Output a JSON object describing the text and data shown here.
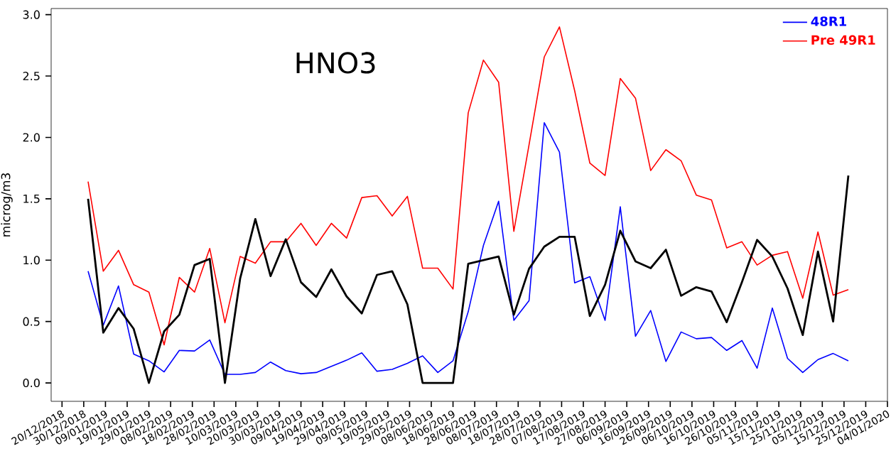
{
  "chart_data": {
    "type": "line",
    "title": "HNO3",
    "ylabel": "microg/m3",
    "x": [
      "2019-01-01",
      "2019-01-08",
      "2019-01-15",
      "2019-01-22",
      "2019-01-29",
      "2019-02-05",
      "2019-02-12",
      "2019-02-19",
      "2019-02-26",
      "2019-03-05",
      "2019-03-12",
      "2019-03-19",
      "2019-03-26",
      "2019-04-02",
      "2019-04-09",
      "2019-04-16",
      "2019-04-23",
      "2019-04-30",
      "2019-05-07",
      "2019-05-14",
      "2019-05-21",
      "2019-05-28",
      "2019-06-04",
      "2019-06-11",
      "2019-06-18",
      "2019-06-25",
      "2019-07-02",
      "2019-07-09",
      "2019-07-16",
      "2019-07-23",
      "2019-07-30",
      "2019-08-06",
      "2019-08-13",
      "2019-08-20",
      "2019-08-27",
      "2019-09-03",
      "2019-09-10",
      "2019-09-17",
      "2019-09-24",
      "2019-10-01",
      "2019-10-08",
      "2019-10-15",
      "2019-10-22",
      "2019-10-29",
      "2019-11-05",
      "2019-11-12",
      "2019-11-19",
      "2019-11-26",
      "2019-12-03",
      "2019-12-10",
      "2019-12-17"
    ],
    "series": [
      {
        "name": "48R1",
        "color": "#0000ff",
        "values": [
          0.91,
          0.47,
          0.79,
          0.235,
          0.18,
          0.09,
          0.265,
          0.26,
          0.35,
          0.07,
          0.07,
          0.085,
          0.17,
          0.1,
          0.075,
          0.085,
          0.135,
          0.185,
          0.245,
          0.095,
          0.11,
          0.16,
          0.22,
          0.085,
          0.18,
          0.58,
          1.12,
          1.48,
          0.51,
          0.67,
          2.12,
          1.88,
          0.815,
          0.865,
          0.51,
          1.435,
          0.38,
          0.59,
          0.175,
          0.415,
          0.36,
          0.37,
          0.265,
          0.345,
          0.12,
          0.61,
          0.2,
          0.085,
          0.19,
          0.24,
          0.18
        ]
      },
      {
        "name": "Pre 49R1",
        "color": "#ff0000",
        "values": [
          1.64,
          0.91,
          1.08,
          0.8,
          0.74,
          0.31,
          0.86,
          0.74,
          1.095,
          0.49,
          1.03,
          0.975,
          1.15,
          1.15,
          1.3,
          1.12,
          1.3,
          1.18,
          1.51,
          1.525,
          1.36,
          1.52,
          0.935,
          0.935,
          0.765,
          2.2,
          2.63,
          2.45,
          1.235,
          1.94,
          2.655,
          2.9,
          2.38,
          1.79,
          1.69,
          2.48,
          2.32,
          1.73,
          1.9,
          1.81,
          1.53,
          1.49,
          1.1,
          1.15,
          0.96,
          1.04,
          1.07,
          0.69,
          1.23,
          0.715,
          0.76
        ]
      },
      {
        "color": "#000000",
        "values": [
          1.5,
          0.41,
          0.61,
          0.44,
          0.0,
          0.42,
          0.555,
          0.96,
          1.01,
          0.0,
          0.85,
          1.335,
          0.87,
          1.17,
          0.82,
          0.7,
          0.925,
          0.705,
          0.566,
          0.88,
          0.91,
          0.64,
          0.0,
          0.0,
          0.0,
          0.97,
          1.0,
          1.03,
          0.555,
          0.93,
          1.11,
          1.19,
          1.19,
          0.545,
          0.8,
          1.24,
          0.99,
          0.935,
          1.085,
          0.71,
          0.78,
          0.745,
          0.495,
          0.82,
          1.165,
          1.03,
          0.77,
          0.39,
          1.07,
          0.5,
          1.69
        ]
      }
    ],
    "xlim": [
      "2018-12-15",
      "2020-01-04"
    ],
    "xticks": [
      {
        "value": "2018-12-20",
        "label": "20/12/2018"
      },
      {
        "value": "2018-12-30",
        "label": "30/12/2018"
      },
      {
        "value": "2019-01-09",
        "label": "09/01/2019"
      },
      {
        "value": "2019-01-19",
        "label": "19/01/2019"
      },
      {
        "value": "2019-01-29",
        "label": "29/01/2019"
      },
      {
        "value": "2019-02-08",
        "label": "08/02/2019"
      },
      {
        "value": "2019-02-18",
        "label": "18/02/2019"
      },
      {
        "value": "2019-02-28",
        "label": "28/02/2019"
      },
      {
        "value": "2019-03-10",
        "label": "10/03/2019"
      },
      {
        "value": "2019-03-20",
        "label": "20/03/2019"
      },
      {
        "value": "2019-03-30",
        "label": "30/03/2019"
      },
      {
        "value": "2019-04-09",
        "label": "09/04/2019"
      },
      {
        "value": "2019-04-19",
        "label": "19/04/2019"
      },
      {
        "value": "2019-04-29",
        "label": "29/04/2019"
      },
      {
        "value": "2019-05-09",
        "label": "09/05/2019"
      },
      {
        "value": "2019-05-19",
        "label": "19/05/2019"
      },
      {
        "value": "2019-05-29",
        "label": "29/05/2019"
      },
      {
        "value": "2019-06-08",
        "label": "08/06/2019"
      },
      {
        "value": "2019-06-18",
        "label": "18/06/2019"
      },
      {
        "value": "2019-06-28",
        "label": "28/06/2019"
      },
      {
        "value": "2019-07-08",
        "label": "08/07/2019"
      },
      {
        "value": "2019-07-18",
        "label": "18/07/2019"
      },
      {
        "value": "2019-07-28",
        "label": "28/07/2019"
      },
      {
        "value": "2019-08-07",
        "label": "07/08/2019"
      },
      {
        "value": "2019-08-17",
        "label": "17/08/2019"
      },
      {
        "value": "2019-08-27",
        "label": "27/08/2019"
      },
      {
        "value": "2019-09-06",
        "label": "06/09/2019"
      },
      {
        "value": "2019-09-16",
        "label": "16/09/2019"
      },
      {
        "value": "2019-09-26",
        "label": "26/09/2019"
      },
      {
        "value": "2019-10-06",
        "label": "06/10/2019"
      },
      {
        "value": "2019-10-16",
        "label": "16/10/2019"
      },
      {
        "value": "2019-10-26",
        "label": "26/10/2019"
      },
      {
        "value": "2019-11-05",
        "label": "05/11/2019"
      },
      {
        "value": "2019-11-15",
        "label": "15/11/2019"
      },
      {
        "value": "2019-11-25",
        "label": "25/11/2019"
      },
      {
        "value": "2019-12-05",
        "label": "05/12/2019"
      },
      {
        "value": "2019-12-15",
        "label": "15/12/2019"
      },
      {
        "value": "2019-12-25",
        "label": "25/12/2019"
      },
      {
        "value": "2020-01-04",
        "label": "04/01/2020"
      }
    ],
    "ylim": [
      -0.15,
      3.05
    ],
    "yticks": [
      {
        "value": 0,
        "label": "0.0"
      },
      {
        "value": 0.5,
        "label": "0.5"
      },
      {
        "value": 1,
        "label": "1.0"
      },
      {
        "value": 1.5,
        "label": "1.5"
      },
      {
        "value": 2,
        "label": "2.0"
      },
      {
        "value": 2.5,
        "label": "2.5"
      },
      {
        "value": 3,
        "label": "3.0"
      }
    ],
    "legend": "top right",
    "marker": "none",
    "line_style": "solid",
    "grid": false
  }
}
